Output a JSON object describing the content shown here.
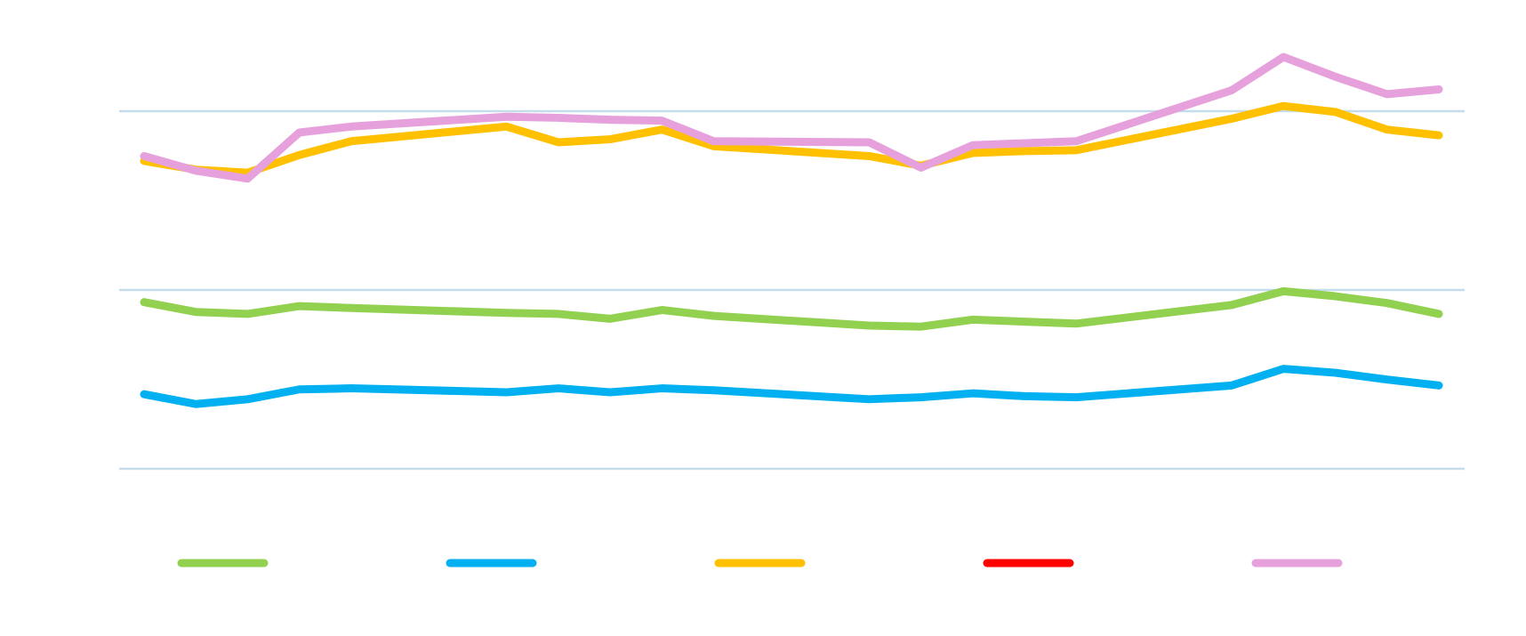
{
  "chart_data": {
    "type": "line",
    "x": [
      0,
      1,
      2,
      3,
      4,
      7,
      8,
      9,
      10,
      11,
      14,
      15,
      16,
      17,
      18,
      21,
      22,
      23,
      24,
      25
    ],
    "xlim": [
      0,
      25
    ],
    "ylim": [
      0,
      250
    ],
    "yticks": [
      0,
      100,
      200
    ],
    "grid": true,
    "legend": "bottom",
    "series": [
      {
        "color": "#92d050",
        "values": [
          93.2,
          87.7,
          86.6,
          91.0,
          89.9,
          87.2,
          86.6,
          83.9,
          88.8,
          85.5,
          80.1,
          79.5,
          83.4,
          82.3,
          81.2,
          91.6,
          99.3,
          96.5,
          92.7,
          86.6
        ]
      },
      {
        "color": "#00b0f0",
        "values": [
          41.7,
          36.2,
          38.9,
          44.4,
          45.0,
          42.8,
          45.0,
          42.8,
          45.0,
          43.9,
          38.9,
          40.0,
          42.2,
          40.6,
          40.0,
          46.6,
          55.9,
          53.7,
          49.9,
          46.6
        ]
      },
      {
        "color": "#ffc000",
        "values": [
          172.2,
          167.3,
          165.6,
          175.5,
          183.2,
          191.4,
          182.6,
          184.3,
          189.7,
          180.4,
          174.9,
          169.5,
          176.6,
          177.7,
          178.2,
          195.8,
          202.9,
          199.6,
          189.7,
          186.5
        ]
      },
      {
        "color": "#ff0000",
        "values": [
          null,
          null,
          null,
          null,
          null,
          null,
          null,
          null,
          null,
          null,
          null,
          null,
          null,
          null,
          null,
          null,
          null,
          null,
          null,
          null
        ]
      },
      {
        "color": "#e6a0dc",
        "values": [
          174.9,
          166.7,
          162.3,
          188.1,
          191.4,
          196.9,
          196.3,
          195.2,
          194.7,
          183.2,
          182.6,
          168.4,
          181.0,
          182.1,
          183.2,
          211.7,
          230.3,
          219.3,
          209.5,
          212.2
        ]
      }
    ]
  }
}
